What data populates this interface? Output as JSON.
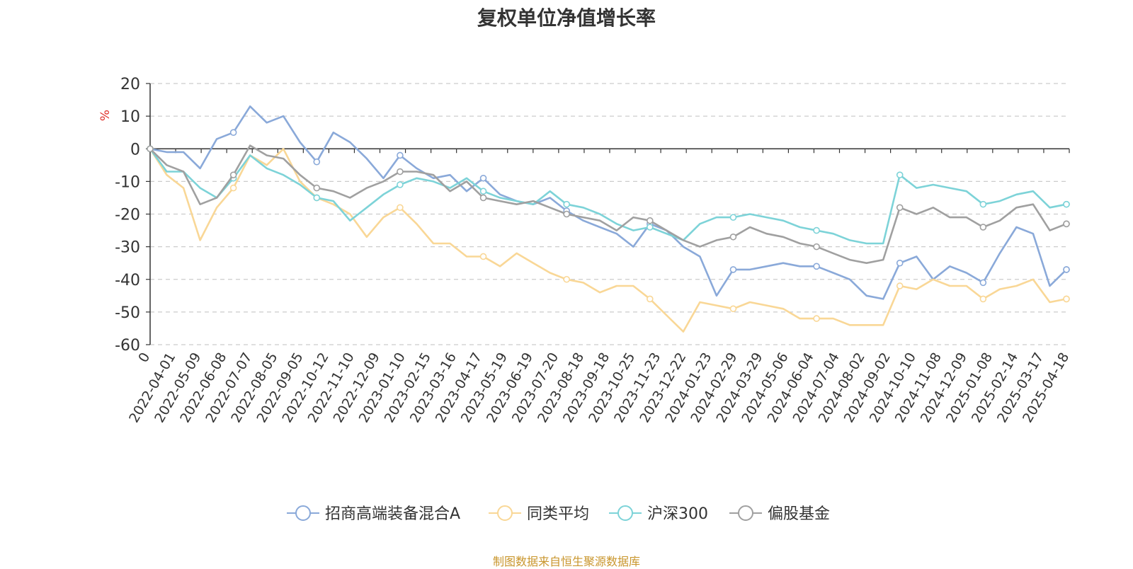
{
  "chart_data": {
    "type": "line",
    "title": "复权单位净值增长率",
    "ylabel": "%",
    "xlabel": "",
    "ylim": [
      -60,
      20
    ],
    "yticks": [
      20,
      10,
      0,
      -10,
      -20,
      -30,
      -40,
      -50,
      -60
    ],
    "x_tick_labels": [
      "0",
      "2022-04-01",
      "2022-05-09",
      "2022-06-08",
      "2022-07-07",
      "2022-08-05",
      "2022-09-05",
      "2022-10-12",
      "2022-11-10",
      "2022-12-09",
      "2023-01-10",
      "2023-02-15",
      "2023-03-16",
      "2023-04-17",
      "2023-05-19",
      "2023-06-19",
      "2023-07-20",
      "2023-08-18",
      "2023-09-18",
      "2023-10-25",
      "2023-11-23",
      "2023-12-22",
      "2024-01-23",
      "2024-02-29",
      "2024-03-29",
      "2024-05-06",
      "2024-06-04",
      "2024-07-04",
      "2024-08-02",
      "2024-09-02",
      "2024-10-10",
      "2024-11-08",
      "2024-12-09",
      "2025-01-08",
      "2025-02-14",
      "2025-03-17",
      "2025-04-18"
    ],
    "grid": "horizontal dashed",
    "legend_position": "bottom",
    "series": [
      {
        "name": "招商高端装备混合A",
        "color": "#8aa9d9",
        "values": [
          0,
          -1,
          -1,
          -6,
          3,
          5,
          13,
          8,
          10,
          2,
          -4,
          5,
          2,
          -3,
          -9,
          -2,
          -6,
          -9,
          -8,
          -13,
          -9,
          -14,
          -16,
          -17,
          -15,
          -19,
          -22,
          -24,
          -26,
          -30,
          -23,
          -25,
          -30,
          -33,
          -45,
          -37,
          -37,
          -36,
          -35,
          -36,
          -36,
          -38,
          -40,
          -45,
          -46,
          -35,
          -33,
          -40,
          -36,
          -38,
          -41,
          -32,
          -24,
          -26,
          -42,
          -37
        ]
      },
      {
        "name": "同类平均",
        "color": "#f9d796",
        "values": [
          0,
          -8,
          -12,
          -28,
          -18,
          -12,
          -2,
          -5,
          0,
          -10,
          -15,
          -17,
          -20,
          -27,
          -21,
          -18,
          -23,
          -29,
          -29,
          -33,
          -33,
          -36,
          -32,
          -35,
          -38,
          -40,
          -41,
          -44,
          -42,
          -42,
          -46,
          -51,
          -56,
          -47,
          -48,
          -49,
          -47,
          -48,
          -49,
          -52,
          -52,
          -52,
          -54,
          -54,
          -54,
          -42,
          -43,
          -40,
          -42,
          -42,
          -46,
          -43,
          -42,
          -40,
          -47,
          -46
        ]
      },
      {
        "name": "沪深300",
        "color": "#7dd3d8",
        "values": [
          0,
          -7,
          -7,
          -12,
          -15,
          -9,
          -2,
          -6,
          -8,
          -11,
          -15,
          -16,
          -22,
          -18,
          -14,
          -11,
          -9,
          -10,
          -12,
          -9,
          -13,
          -15,
          -16,
          -17,
          -13,
          -17,
          -18,
          -20,
          -23,
          -25,
          -24,
          -26,
          -28,
          -23,
          -21,
          -21,
          -20,
          -21,
          -22,
          -24,
          -25,
          -26,
          -28,
          -29,
          -29,
          -8,
          -12,
          -11,
          -12,
          -13,
          -17,
          -16,
          -14,
          -13,
          -18,
          -17
        ]
      },
      {
        "name": "偏股基金",
        "color": "#a0a0a0",
        "values": [
          0,
          -5,
          -7,
          -17,
          -15,
          -8,
          1,
          -2,
          -3,
          -8,
          -12,
          -13,
          -15,
          -12,
          -10,
          -7,
          -7,
          -8,
          -13,
          -10,
          -15,
          -16,
          -17,
          -16,
          -18,
          -20,
          -21,
          -22,
          -25,
          -21,
          -22,
          -25,
          -28,
          -30,
          -28,
          -27,
          -24,
          -26,
          -27,
          -29,
          -30,
          -32,
          -34,
          -35,
          -34,
          -18,
          -20,
          -18,
          -21,
          -21,
          -24,
          -22,
          -18,
          -17,
          -25,
          -23
        ]
      }
    ]
  },
  "source_text": "制图数据来自恒生聚源数据库"
}
